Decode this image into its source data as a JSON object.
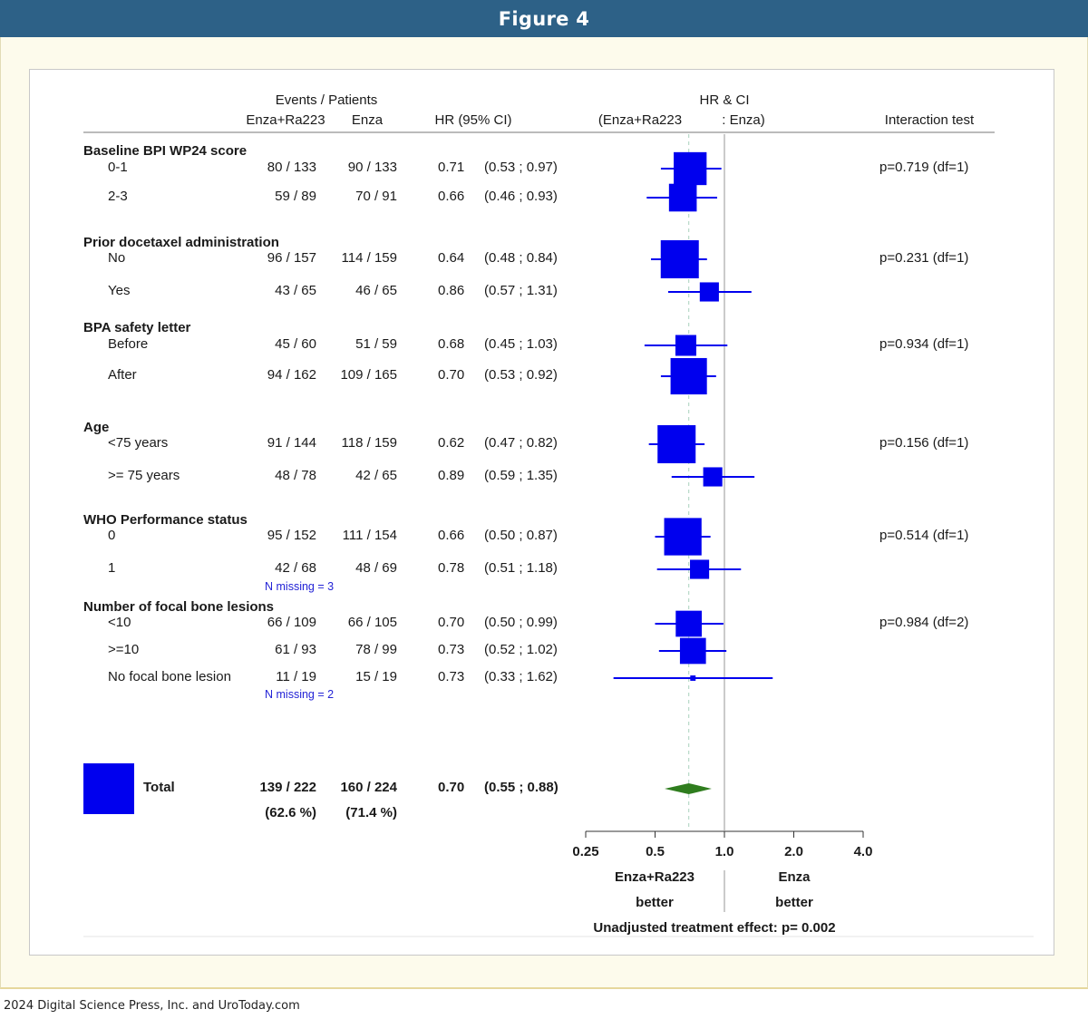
{
  "header": {
    "title": "Figure 4"
  },
  "footer": {
    "copyright": "2024 Digital Science Press, Inc. and UroToday.com"
  },
  "colors": {
    "header_bg": "#2d6187",
    "marker": "#0000ee",
    "diamond": "#2f7d1e",
    "ref_line": "#a8a8a8",
    "median_line": "#b8d9c8"
  },
  "chart_data": {
    "type": "forest",
    "columns": {
      "events_patients": "Events / Patients",
      "arm1": "Enza+Ra223",
      "arm2": "Enza",
      "hr_ci": "HR (95% CI)",
      "plot_title": "HR & CI",
      "plot_sub_left": "(Enza+Ra223",
      "plot_sub_right": ": Enza)",
      "interaction": "Interaction test"
    },
    "groups": [
      {
        "title": "Baseline BPI WP24 score",
        "interaction": "p=0.719 (df=1)",
        "rows": [
          {
            "label": "0-1",
            "arm1": "80 / 133",
            "arm2": "90 / 133",
            "hr_text": "0.71",
            "ci_text": "(0.53 ; 0.97)",
            "hr": 0.71,
            "lo": 0.53,
            "hi": 0.97,
            "weight": 0.85
          },
          {
            "label": "2-3",
            "arm1": "59 / 89",
            "arm2": "70 / 91",
            "hr_text": "0.66",
            "ci_text": "(0.46 ; 0.93)",
            "hr": 0.66,
            "lo": 0.46,
            "hi": 0.93,
            "weight": 0.7
          }
        ]
      },
      {
        "title": "Prior docetaxel administration",
        "interaction": "p=0.231 (df=1)",
        "rows": [
          {
            "label": "No",
            "arm1": "96 / 157",
            "arm2": "114 / 159",
            "hr_text": "0.64",
            "ci_text": "(0.48 ; 0.84)",
            "hr": 0.64,
            "lo": 0.48,
            "hi": 0.84,
            "weight": 1.0
          },
          {
            "label": "Yes",
            "arm1": "43 / 65",
            "arm2": "46 / 65",
            "hr_text": "0.86",
            "ci_text": "(0.57 ; 1.31)",
            "hr": 0.86,
            "lo": 0.57,
            "hi": 1.31,
            "weight": 0.45
          }
        ]
      },
      {
        "title": "BPA safety letter",
        "interaction": "p=0.934 (df=1)",
        "rows": [
          {
            "label": "Before",
            "arm1": "45 / 60",
            "arm2": "51 / 59",
            "hr_text": "0.68",
            "ci_text": "(0.45 ; 1.03)",
            "hr": 0.68,
            "lo": 0.45,
            "hi": 1.03,
            "weight": 0.5
          },
          {
            "label": "After",
            "arm1": "94 / 162",
            "arm2": "109 / 165",
            "hr_text": "0.70",
            "ci_text": "(0.53 ; 0.92)",
            "hr": 0.7,
            "lo": 0.53,
            "hi": 0.92,
            "weight": 0.95
          }
        ]
      },
      {
        "title": "Age",
        "interaction": "p=0.156 (df=1)",
        "rows": [
          {
            "label": "<75 years",
            "arm1": "91 / 144",
            "arm2": "118 / 159",
            "hr_text": "0.62",
            "ci_text": "(0.47 ; 0.82)",
            "hr": 0.62,
            "lo": 0.47,
            "hi": 0.82,
            "weight": 1.0
          },
          {
            "label": ">= 75 years",
            "arm1": "48 / 78",
            "arm2": "42 / 65",
            "hr_text": "0.89",
            "ci_text": "(0.59 ; 1.35)",
            "hr": 0.89,
            "lo": 0.59,
            "hi": 1.35,
            "weight": 0.45
          }
        ]
      },
      {
        "title": "WHO Performance status",
        "interaction": "p=0.514 (df=1)",
        "rows": [
          {
            "label": "0",
            "arm1": "95 / 152",
            "arm2": "111 / 154",
            "hr_text": "0.66",
            "ci_text": "(0.50 ; 0.87)",
            "hr": 0.66,
            "lo": 0.5,
            "hi": 0.87,
            "weight": 0.98
          },
          {
            "label": "1",
            "arm1": "42 / 68",
            "arm2": "48 / 69",
            "hr_text": "0.78",
            "ci_text": "(0.51 ; 1.18)",
            "hr": 0.78,
            "lo": 0.51,
            "hi": 1.18,
            "weight": 0.45
          }
        ],
        "note": "N missing = 3"
      },
      {
        "title": "Number of focal bone lesions",
        "interaction": "p=0.984 (df=2)",
        "rows": [
          {
            "label": "<10",
            "arm1": "66 / 109",
            "arm2": "66 / 105",
            "hr_text": "0.70",
            "ci_text": "(0.50 ; 0.99)",
            "hr": 0.7,
            "lo": 0.5,
            "hi": 0.99,
            "weight": 0.65
          },
          {
            "label": ">=10",
            "arm1": "61 / 93",
            "arm2": "78 / 99",
            "hr_text": "0.73",
            "ci_text": "(0.52 ; 1.02)",
            "hr": 0.73,
            "lo": 0.52,
            "hi": 1.02,
            "weight": 0.65
          },
          {
            "label": "No focal bone lesion",
            "arm1": "11 / 19",
            "arm2": "15 / 19",
            "hr_text": "0.73",
            "ci_text": "(0.33 ; 1.62)",
            "hr": 0.73,
            "lo": 0.33,
            "hi": 1.62,
            "weight": 0.05
          }
        ],
        "note": "N missing = 2"
      }
    ],
    "total": {
      "label": "Total",
      "arm1": "139 / 222",
      "arm2": "160 / 224",
      "arm1_pct": "(62.6 %)",
      "arm2_pct": "(71.4 %)",
      "hr_text": "0.70",
      "ci_text": "(0.55 ; 0.88)",
      "hr": 0.7,
      "lo": 0.55,
      "hi": 0.88
    },
    "x_axis": {
      "scale": "log2",
      "range": [
        0.25,
        4.0
      ],
      "ticks": [
        0.25,
        0.5,
        1.0,
        2.0,
        4.0
      ],
      "tick_labels": [
        "0.25",
        "0.5",
        "1.0",
        "2.0",
        "4.0"
      ],
      "reference": 1.0,
      "left_label_1": "Enza+Ra223",
      "left_label_2": "better",
      "right_label_1": "Enza",
      "right_label_2": "better"
    },
    "treatment_effect": "Unadjusted treatment effect: p= 0.002"
  }
}
